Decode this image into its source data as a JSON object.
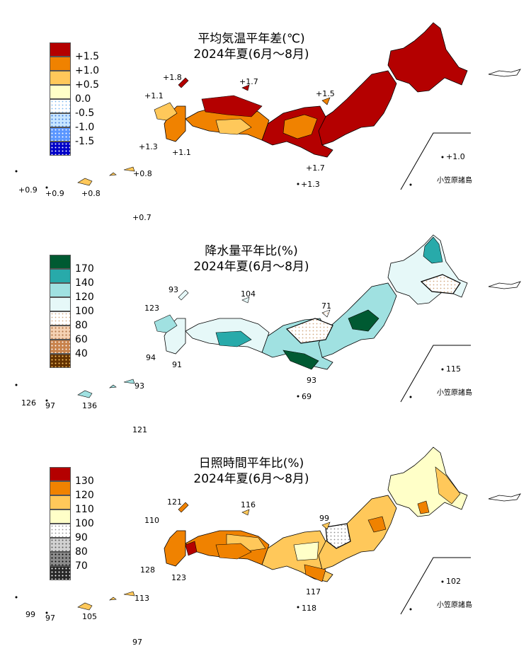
{
  "panels": [
    {
      "id": "temperature",
      "title_line1": "平均気温平年差(℃)",
      "title_line2": "2024年夏(6月～8月)",
      "legend": [
        {
          "label": "+1.5",
          "color": "#b40000",
          "pattern": "solid"
        },
        {
          "label": "+1.0",
          "color": "#f08200",
          "pattern": "solid"
        },
        {
          "label": "+0.5",
          "color": "#ffc85a",
          "pattern": "solid"
        },
        {
          "label": "0.0",
          "color": "#ffffc8",
          "pattern": "solid"
        },
        {
          "label": "-0.5",
          "color": "#ffffff",
          "pattern": "dots-lightblue"
        },
        {
          "label": "-1.0",
          "color": "#c8e6ff",
          "pattern": "dots-blue"
        },
        {
          "label": "-1.5",
          "color": "#5a96ff",
          "pattern": "dots-white"
        },
        {
          "label": "",
          "color": "#0000c8",
          "pattern": "dots-white"
        }
      ],
      "values": [
        "+1.8",
        "+1.7",
        "+1.1",
        "+1.5",
        "+1.3",
        "+1.1",
        "+1.7",
        "+1.3",
        "+1.0",
        "+0.8",
        "+0.9",
        "+0.9",
        "+0.8",
        "+0.7"
      ],
      "ogasawara_label": "小笠原諸島"
    },
    {
      "id": "precipitation",
      "title_line1": "降水量平年比(%)",
      "title_line2": "2024年夏(6月～8月)",
      "legend": [
        {
          "label": "170",
          "color": "#005a32",
          "pattern": "solid"
        },
        {
          "label": "140",
          "color": "#28aaaa",
          "pattern": "solid"
        },
        {
          "label": "120",
          "color": "#a0e1e1",
          "pattern": "solid"
        },
        {
          "label": "100",
          "color": "#e6f8f8",
          "pattern": "solid"
        },
        {
          "label": "80",
          "color": "#ffffff",
          "pattern": "dots-tan"
        },
        {
          "label": "60",
          "color": "#f5d2b4",
          "pattern": "dots-brown"
        },
        {
          "label": "40",
          "color": "#c8824b",
          "pattern": "dots-white"
        },
        {
          "label": "",
          "color": "#643200",
          "pattern": "dots-white"
        }
      ],
      "values": [
        "93",
        "104",
        "123",
        "71",
        "94",
        "91",
        "93",
        "69",
        "115",
        "93",
        "126",
        "97",
        "136",
        "121"
      ],
      "ogasawara_label": "小笠原諸島"
    },
    {
      "id": "sunshine",
      "title_line1": "日照時間平年比(%)",
      "title_line2": "2024年夏(6月～8月)",
      "legend": [
        {
          "label": "130",
          "color": "#b40000",
          "pattern": "solid"
        },
        {
          "label": "120",
          "color": "#f08200",
          "pattern": "solid"
        },
        {
          "label": "110",
          "color": "#ffc85a",
          "pattern": "solid"
        },
        {
          "label": "100",
          "color": "#ffffc8",
          "pattern": "solid"
        },
        {
          "label": "90",
          "color": "#ffffff",
          "pattern": "dots-gray"
        },
        {
          "label": "80",
          "color": "#d2d2d2",
          "pattern": "dots-dark"
        },
        {
          "label": "70",
          "color": "#8c8c8c",
          "pattern": "dots-black"
        },
        {
          "label": "",
          "color": "#282828",
          "pattern": "dots-white"
        }
      ],
      "values": [
        "121",
        "116",
        "110",
        "99",
        "128",
        "123",
        "117",
        "118",
        "102",
        "113",
        "99",
        "97",
        "105",
        "97"
      ],
      "ogasawara_label": "小笠原諸島"
    }
  ]
}
